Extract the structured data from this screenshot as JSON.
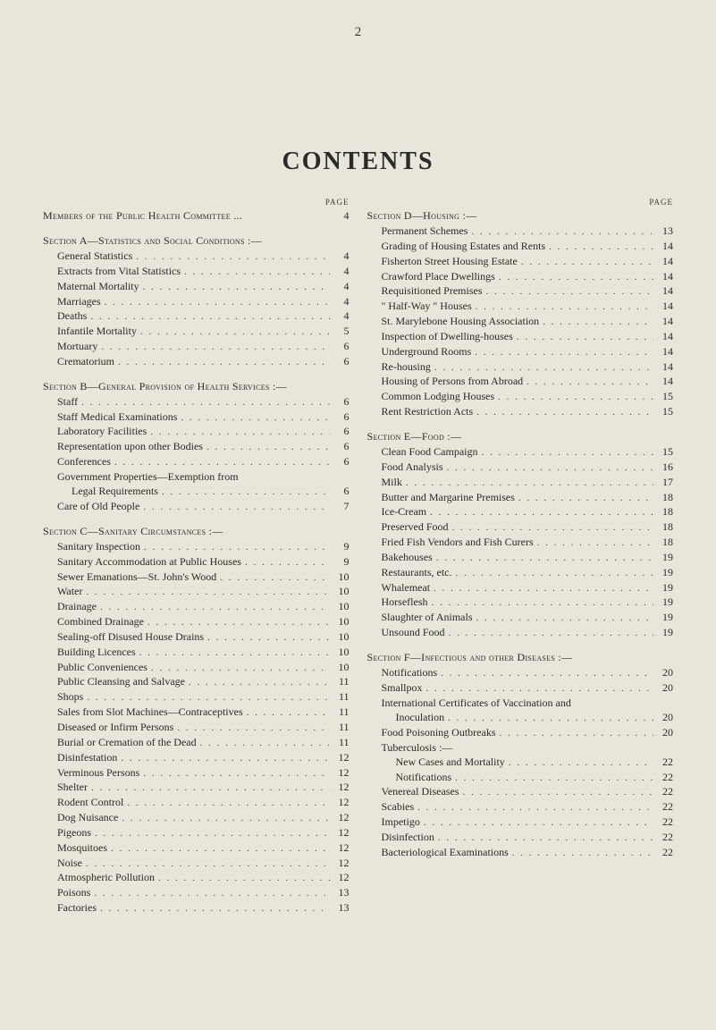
{
  "page_number_top": "2",
  "title": "CONTENTS",
  "page_label": "PAGE",
  "left": {
    "groups": [
      {
        "title": "Members of the Public Health Committee ...",
        "title_page": "4",
        "entries": []
      },
      {
        "title": "Section A—Statistics and Social Conditions :—",
        "title_page": "",
        "entries": [
          {
            "label": "General Statistics",
            "page": "4",
            "indent": 1
          },
          {
            "label": "Extracts from Vital Statistics",
            "page": "4",
            "indent": 1
          },
          {
            "label": "Maternal Mortality",
            "page": "4",
            "indent": 1
          },
          {
            "label": "Marriages",
            "page": "4",
            "indent": 1
          },
          {
            "label": "Deaths",
            "page": "4",
            "indent": 1
          },
          {
            "label": "Infantile Mortality",
            "page": "5",
            "indent": 1
          },
          {
            "label": "Mortuary",
            "page": "6",
            "indent": 1
          },
          {
            "label": "Crematorium",
            "page": "6",
            "indent": 1
          }
        ]
      },
      {
        "title": "Section B—General Provision of Health Services :—",
        "title_page": "",
        "entries": [
          {
            "label": "Staff",
            "page": "6",
            "indent": 1
          },
          {
            "label": "Staff Medical Examinations",
            "page": "6",
            "indent": 1
          },
          {
            "label": "Laboratory Facilities",
            "page": "6",
            "indent": 1
          },
          {
            "label": "Representation upon other Bodies",
            "page": "6",
            "indent": 1
          },
          {
            "label": "Conferences",
            "page": "6",
            "indent": 1
          },
          {
            "label": "Government Properties—Exemption from",
            "page": "",
            "indent": 1,
            "nodots": true
          },
          {
            "label": "Legal Requirements",
            "page": "6",
            "indent": 2
          },
          {
            "label": "Care of Old People",
            "page": "7",
            "indent": 1
          }
        ]
      },
      {
        "title": "Section C—Sanitary Circumstances :—",
        "title_page": "",
        "entries": [
          {
            "label": "Sanitary Inspection",
            "page": "9",
            "indent": 1
          },
          {
            "label": "Sanitary Accommodation at Public Houses",
            "page": "9",
            "indent": 1
          },
          {
            "label": "Sewer Emanations—St. John's Wood",
            "page": "10",
            "indent": 1
          },
          {
            "label": "Water",
            "page": "10",
            "indent": 1
          },
          {
            "label": "Drainage",
            "page": "10",
            "indent": 1
          },
          {
            "label": "Combined Drainage",
            "page": "10",
            "indent": 1
          },
          {
            "label": "Sealing-off Disused House Drains",
            "page": "10",
            "indent": 1
          },
          {
            "label": "Building Licences",
            "page": "10",
            "indent": 1
          },
          {
            "label": "Public Conveniences",
            "page": "10",
            "indent": 1
          },
          {
            "label": "Public Cleansing and Salvage",
            "page": "11",
            "indent": 1
          },
          {
            "label": "Shops",
            "page": "11",
            "indent": 1
          },
          {
            "label": "Sales from Slot Machines—Contraceptives",
            "page": "11",
            "indent": 1
          },
          {
            "label": "Diseased or Infirm Persons",
            "page": "11",
            "indent": 1
          },
          {
            "label": "Burial or Cremation of the Dead",
            "page": "11",
            "indent": 1
          },
          {
            "label": "Disinfestation",
            "page": "12",
            "indent": 1
          },
          {
            "label": "Verminous Persons",
            "page": "12",
            "indent": 1
          },
          {
            "label": "Shelter",
            "page": "12",
            "indent": 1
          },
          {
            "label": "Rodent Control",
            "page": "12",
            "indent": 1
          },
          {
            "label": "Dog Nuisance",
            "page": "12",
            "indent": 1
          },
          {
            "label": "Pigeons",
            "page": "12",
            "indent": 1
          },
          {
            "label": "Mosquitoes",
            "page": "12",
            "indent": 1
          },
          {
            "label": "Noise",
            "page": "12",
            "indent": 1
          },
          {
            "label": "Atmospheric Pollution",
            "page": "12",
            "indent": 1
          },
          {
            "label": "Poisons",
            "page": "13",
            "indent": 1
          },
          {
            "label": "Factories",
            "page": "13",
            "indent": 1
          }
        ]
      }
    ]
  },
  "right": {
    "groups": [
      {
        "title": "Section D—Housing :—",
        "title_page": "",
        "entries": [
          {
            "label": "Permanent Schemes",
            "page": "13",
            "indent": 1
          },
          {
            "label": "Grading of Housing Estates and Rents",
            "page": "14",
            "indent": 1
          },
          {
            "label": "Fisherton Street Housing Estate",
            "page": "14",
            "indent": 1
          },
          {
            "label": "Crawford Place Dwellings",
            "page": "14",
            "indent": 1
          },
          {
            "label": "Requisitioned Premises",
            "page": "14",
            "indent": 1
          },
          {
            "label": "\" Half-Way \" Houses",
            "page": "14",
            "indent": 1
          },
          {
            "label": "St. Marylebone Housing Association",
            "page": "14",
            "indent": 1
          },
          {
            "label": "Inspection of Dwelling-houses",
            "page": "14",
            "indent": 1
          },
          {
            "label": "Underground Rooms",
            "page": "14",
            "indent": 1
          },
          {
            "label": "Re-housing",
            "page": "14",
            "indent": 1
          },
          {
            "label": "Housing of Persons from Abroad",
            "page": "14",
            "indent": 1
          },
          {
            "label": "Common Lodging Houses",
            "page": "15",
            "indent": 1
          },
          {
            "label": "Rent Restriction Acts",
            "page": "15",
            "indent": 1
          }
        ]
      },
      {
        "title": "Section E—Food :—",
        "title_page": "",
        "entries": [
          {
            "label": "Clean Food Campaign",
            "page": "15",
            "indent": 1
          },
          {
            "label": "Food Analysis",
            "page": "16",
            "indent": 1
          },
          {
            "label": "Milk",
            "page": "17",
            "indent": 1
          },
          {
            "label": "Butter and Margarine Premises",
            "page": "18",
            "indent": 1
          },
          {
            "label": "Ice-Cream",
            "page": "18",
            "indent": 1
          },
          {
            "label": "Preserved Food",
            "page": "18",
            "indent": 1
          },
          {
            "label": "Fried Fish Vendors and Fish Curers",
            "page": "18",
            "indent": 1
          },
          {
            "label": "Bakehouses",
            "page": "19",
            "indent": 1
          },
          {
            "label": "Restaurants, etc.",
            "page": "19",
            "indent": 1
          },
          {
            "label": "Whalemeat",
            "page": "19",
            "indent": 1
          },
          {
            "label": "Horseflesh",
            "page": "19",
            "indent": 1
          },
          {
            "label": "Slaughter of Animals",
            "page": "19",
            "indent": 1
          },
          {
            "label": "Unsound Food",
            "page": "19",
            "indent": 1
          }
        ]
      },
      {
        "title": "Section F—Infectious and other Diseases :—",
        "title_page": "",
        "entries": [
          {
            "label": "Notifications",
            "page": "20",
            "indent": 1
          },
          {
            "label": "Smallpox",
            "page": "20",
            "indent": 1
          },
          {
            "label": "International Certificates of Vaccination and",
            "page": "",
            "indent": 1,
            "nodots": true
          },
          {
            "label": "Inoculation",
            "page": "20",
            "indent": 2
          },
          {
            "label": "Food Poisoning Outbreaks",
            "page": "20",
            "indent": 1
          },
          {
            "label": "Tuberculosis :—",
            "page": "",
            "indent": 1,
            "nodots": true
          },
          {
            "label": "New Cases and Mortality",
            "page": "22",
            "indent": 2
          },
          {
            "label": "Notifications",
            "page": "22",
            "indent": 2
          },
          {
            "label": "Venereal Diseases",
            "page": "22",
            "indent": 1
          },
          {
            "label": "Scabies",
            "page": "22",
            "indent": 1
          },
          {
            "label": "Impetigo",
            "page": "22",
            "indent": 1
          },
          {
            "label": "Disinfection",
            "page": "22",
            "indent": 1
          },
          {
            "label": "Bacteriological Examinations",
            "page": "22",
            "indent": 1
          }
        ]
      }
    ]
  }
}
